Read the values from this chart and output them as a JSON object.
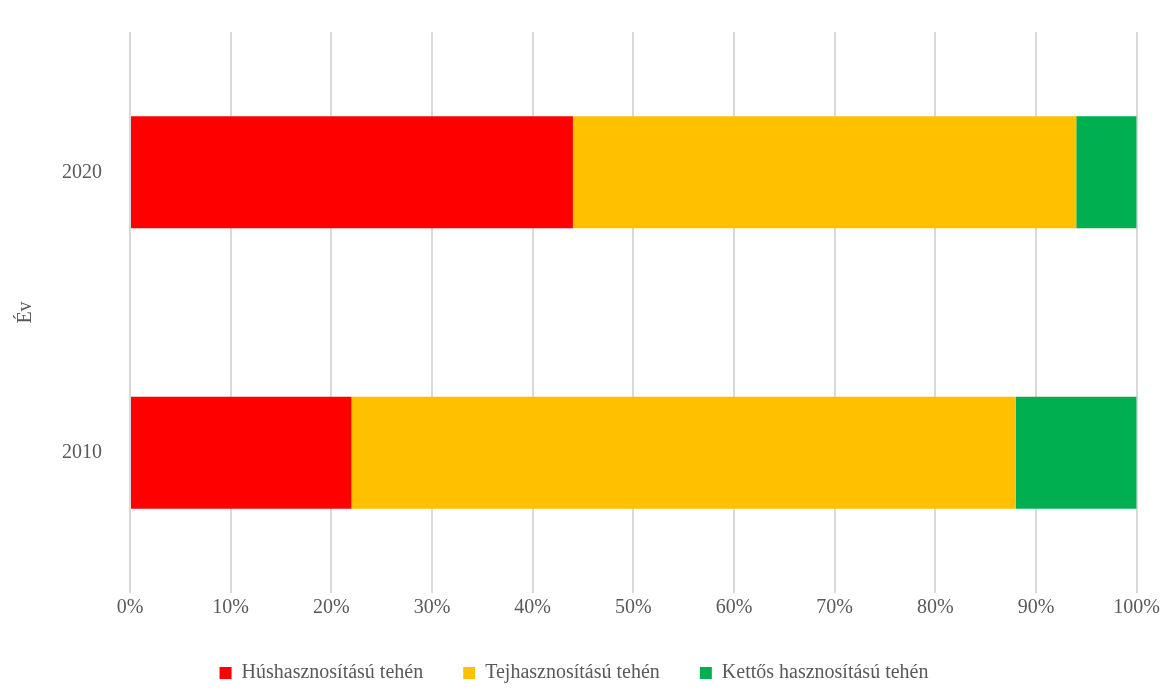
{
  "chart_data": {
    "type": "bar",
    "orientation": "horizontal",
    "stacked": true,
    "ylabel": "Év",
    "categories": [
      "2020",
      "2010"
    ],
    "series": [
      {
        "name": "Húshasznosítású tehén",
        "color": "#ff0000",
        "values": [
          44,
          22
        ]
      },
      {
        "name": "Tejhasznosítású tehén",
        "color": "#ffc000",
        "values": [
          50,
          66
        ]
      },
      {
        "name": "Kettős hasznosítású tehén",
        "color": "#00b050",
        "values": [
          6,
          12
        ]
      }
    ],
    "xlim": [
      0,
      100
    ],
    "xticks": [
      {
        "value": 0,
        "label": "0%"
      },
      {
        "value": 10,
        "label": "10%"
      },
      {
        "value": 20,
        "label": "20%"
      },
      {
        "value": 30,
        "label": "30%"
      },
      {
        "value": 40,
        "label": "40%"
      },
      {
        "value": 50,
        "label": "50%"
      },
      {
        "value": 60,
        "label": "60%"
      },
      {
        "value": 70,
        "label": "70%"
      },
      {
        "value": 80,
        "label": "80%"
      },
      {
        "value": 90,
        "label": "90%"
      },
      {
        "value": 100,
        "label": "100%"
      }
    ],
    "grid": "x",
    "legend": "bottom"
  }
}
